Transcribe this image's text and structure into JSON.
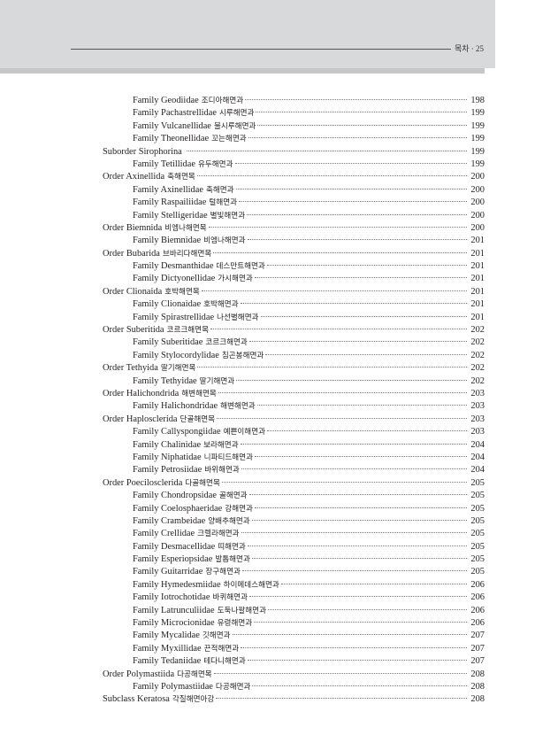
{
  "header": {
    "running_title": "목차 · 25"
  },
  "entries": [
    {
      "level": 2,
      "name": "Family Geodiidae",
      "ko": "조디아해면과",
      "page": "198"
    },
    {
      "level": 2,
      "name": "Family Pachastrellidae",
      "ko": "시루해면과",
      "page": "199"
    },
    {
      "level": 2,
      "name": "Family Vulcanellidae",
      "ko": "불시루해면과",
      "page": "199"
    },
    {
      "level": 2,
      "name": "Family Theonellidae",
      "ko": "꼬는해면과",
      "page": "199"
    },
    {
      "level": 1,
      "name": "Suborder Sirophorina",
      "ko": "",
      "page": "199"
    },
    {
      "level": 2,
      "name": "Family Tetillidae",
      "ko": "유두해면과",
      "page": "199"
    },
    {
      "level": 1,
      "name": "Order Axinellida",
      "ko": "축해면목",
      "page": "200"
    },
    {
      "level": 2,
      "name": "Family Axinellidae",
      "ko": "축해면과",
      "page": "200"
    },
    {
      "level": 2,
      "name": "Family Raspailiidae",
      "ko": "털해면과",
      "page": "200"
    },
    {
      "level": 2,
      "name": "Family Stelligeridae",
      "ko": "별빛해면과",
      "page": "200"
    },
    {
      "level": 1,
      "name": "Order Biemnida",
      "ko": "비엠나해면목",
      "page": "200"
    },
    {
      "level": 2,
      "name": "Family Biemnidae",
      "ko": "비엠나해면과",
      "page": "201"
    },
    {
      "level": 1,
      "name": "Order Bubarida",
      "ko": "브바리다해면목",
      "page": "201"
    },
    {
      "level": 2,
      "name": "Family Desmanthidae",
      "ko": "데스만트해면과",
      "page": "201"
    },
    {
      "level": 2,
      "name": "Family Dictyonellidae",
      "ko": "가시해면과",
      "page": "201"
    },
    {
      "level": 1,
      "name": "Order Clionaida",
      "ko": "호박해면목",
      "page": "201"
    },
    {
      "level": 2,
      "name": "Family Clionaidae",
      "ko": "호박해면과",
      "page": "201"
    },
    {
      "level": 2,
      "name": "Family Spirastrellidae",
      "ko": "나선별해면과",
      "page": "201"
    },
    {
      "level": 1,
      "name": "Order Suberitida",
      "ko": "코르크해면목",
      "page": "202"
    },
    {
      "level": 2,
      "name": "Family Suberitidae",
      "ko": "코르크해면과",
      "page": "202"
    },
    {
      "level": 2,
      "name": "Family Stylocordylidae",
      "ko": "침곤봉해면과",
      "page": "202"
    },
    {
      "level": 1,
      "name": "Order Tethyida",
      "ko": "딸기해면목",
      "page": "202"
    },
    {
      "level": 2,
      "name": "Family Tethyidae",
      "ko": "딸기해면과",
      "page": "202"
    },
    {
      "level": 1,
      "name": "Order Halichondrida",
      "ko": "해변해면목",
      "page": "203"
    },
    {
      "level": 2,
      "name": "Family Halichondridae",
      "ko": "해변해면과",
      "page": "203"
    },
    {
      "level": 1,
      "name": "Order Haplosclerida",
      "ko": "단골해면목",
      "page": "203"
    },
    {
      "level": 2,
      "name": "Family Callyspongiidae",
      "ko": "예쁜이해면과",
      "page": "203"
    },
    {
      "level": 2,
      "name": "Family Chalinidae",
      "ko": "보라해면과",
      "page": "204"
    },
    {
      "level": 2,
      "name": "Family Niphatidae",
      "ko": "니파티드해면과",
      "page": "204"
    },
    {
      "level": 2,
      "name": "Family Petrosiidae",
      "ko": "바위해면과",
      "page": "204"
    },
    {
      "level": 1,
      "name": "Order Poecilosclerida",
      "ko": "다골해면목",
      "page": "205"
    },
    {
      "level": 2,
      "name": "Family Chondropsidae",
      "ko": "골해면과",
      "page": "205"
    },
    {
      "level": 2,
      "name": "Family Coelosphaeridae",
      "ko": "강해면과",
      "page": "205"
    },
    {
      "level": 2,
      "name": "Family Crambeidae",
      "ko": "양배추해면과",
      "page": "205"
    },
    {
      "level": 2,
      "name": "Family Crellidae",
      "ko": "크렐라해면과",
      "page": "205"
    },
    {
      "level": 2,
      "name": "Family Desmacellidae",
      "ko": "띠해면과",
      "page": "205"
    },
    {
      "level": 2,
      "name": "Family Esperiopsidae",
      "ko": "발톱해면과",
      "page": "205"
    },
    {
      "level": 2,
      "name": "Family Guitarridae",
      "ko": "장구해면과",
      "page": "205"
    },
    {
      "level": 2,
      "name": "Family Hymedesmiidae",
      "ko": "하이메데스해면과",
      "page": "206"
    },
    {
      "level": 2,
      "name": "Family Iotrochotidae",
      "ko": "바퀴해면과",
      "page": "206"
    },
    {
      "level": 2,
      "name": "Family Latrunculiidae",
      "ko": "도둑나팔해면과",
      "page": "206"
    },
    {
      "level": 2,
      "name": "Family Microcionidae",
      "ko": "유령해면과",
      "page": "206"
    },
    {
      "level": 2,
      "name": "Family Mycalidae",
      "ko": "깃해면과",
      "page": "207"
    },
    {
      "level": 2,
      "name": "Family Myxillidae",
      "ko": "끈적해면과",
      "page": "207"
    },
    {
      "level": 2,
      "name": "Family Tedaniidae",
      "ko": "테다니해면과",
      "page": "207"
    },
    {
      "level": 1,
      "name": "Order Polymastiida",
      "ko": "다공해면목",
      "page": "208"
    },
    {
      "level": 2,
      "name": "Family Polymastiidae",
      "ko": "다공해면과",
      "page": "208"
    },
    {
      "level": 1,
      "name": "Subclass Keratosa",
      "ko": "각질해면아강",
      "page": "208"
    }
  ]
}
